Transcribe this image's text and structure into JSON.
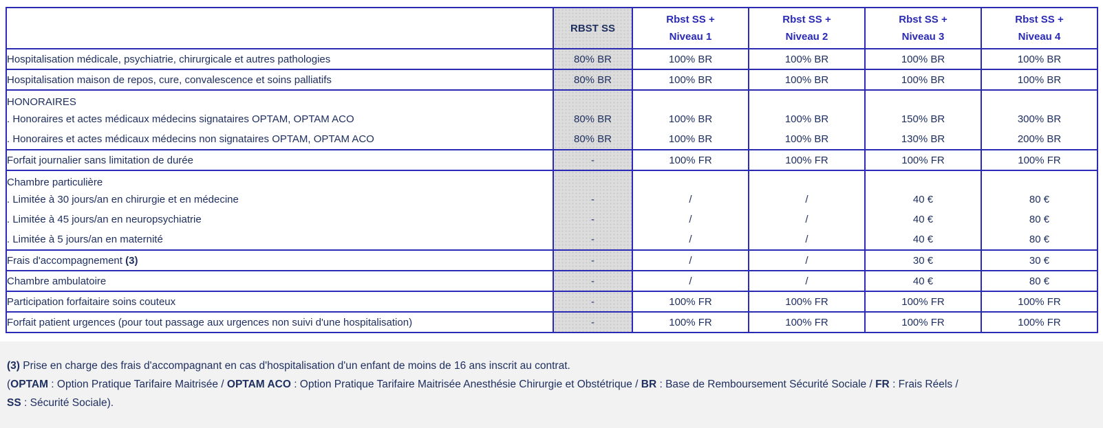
{
  "colors": {
    "border_blue": "#2a2ab5",
    "header_blue": "#2a2ab5",
    "text_navy": "#1f3060",
    "gray_column": "#dcdcdc",
    "footer_bg": "#f2f2f2"
  },
  "table": {
    "header": {
      "corner": "",
      "columns": [
        {
          "id": "rbst-ss",
          "gray": true,
          "lines": [
            "RBST SS"
          ]
        },
        {
          "id": "niveau-1",
          "gray": false,
          "lines": [
            "Rbst SS +",
            "Niveau 1"
          ]
        },
        {
          "id": "niveau-2",
          "gray": false,
          "lines": [
            "Rbst SS +",
            "Niveau 2"
          ]
        },
        {
          "id": "niveau-3",
          "gray": false,
          "lines": [
            "Rbst SS +",
            "Niveau 3"
          ]
        },
        {
          "id": "niveau-4",
          "gray": false,
          "lines": [
            "Rbst SS +",
            "Niveau 4"
          ]
        }
      ]
    },
    "rows": [
      {
        "label_lines": [
          "Hospitalisation médicale, psychiatrie, chirurgicale et autres pathologies"
        ],
        "values": [
          [
            "80% BR"
          ],
          [
            "100% BR"
          ],
          [
            "100% BR"
          ],
          [
            "100% BR"
          ],
          [
            "100% BR"
          ]
        ]
      },
      {
        "label_lines": [
          "Hospitalisation maison de repos, cure, convalescence et soins palliatifs"
        ],
        "values": [
          [
            "80% BR"
          ],
          [
            "100% BR"
          ],
          [
            "100% BR"
          ],
          [
            "100% BR"
          ],
          [
            "100% BR"
          ]
        ]
      },
      {
        "label_lines": [
          "HONORAIRES",
          ". Honoraires et actes médicaux médecins signataires OPTAM, OPTAM ACO",
          ". Honoraires et actes médicaux médecins non signataires OPTAM, OPTAM ACO"
        ],
        "values": [
          [
            "",
            "80% BR",
            "80% BR"
          ],
          [
            "",
            "100% BR",
            "100% BR"
          ],
          [
            "",
            "100% BR",
            "100% BR"
          ],
          [
            "",
            "150% BR",
            "130% BR"
          ],
          [
            "",
            "300% BR",
            "200% BR"
          ]
        ]
      },
      {
        "label_lines": [
          "Forfait journalier sans limitation de durée"
        ],
        "values": [
          [
            "-"
          ],
          [
            "100% FR"
          ],
          [
            "100% FR"
          ],
          [
            "100% FR"
          ],
          [
            "100% FR"
          ]
        ]
      },
      {
        "label_lines": [
          "Chambre particulière",
          ". Limitée à 30 jours/an en chirurgie et en médecine",
          ". Limitée à 45 jours/an en neuropsychiatrie",
          ". Limitée à 5 jours/an en maternité"
        ],
        "values": [
          [
            "",
            "-",
            "-",
            "-"
          ],
          [
            "",
            "/",
            "/",
            "/"
          ],
          [
            "",
            "/",
            "/",
            "/"
          ],
          [
            "",
            "40 €",
            "40 €",
            "40 €"
          ],
          [
            "",
            "80 €",
            "80 €",
            "80 €"
          ]
        ]
      },
      {
        "label_lines": [
          "Frais d'accompagnement **(3)**"
        ],
        "values": [
          [
            "-"
          ],
          [
            "/"
          ],
          [
            "/"
          ],
          [
            "30 €"
          ],
          [
            "30 €"
          ]
        ]
      },
      {
        "label_lines": [
          "Chambre ambulatoire"
        ],
        "values": [
          [
            "-"
          ],
          [
            "/"
          ],
          [
            "/"
          ],
          [
            "40 €"
          ],
          [
            "80 €"
          ]
        ]
      },
      {
        "label_lines": [
          "Participation forfaitaire soins couteux"
        ],
        "values": [
          [
            "-"
          ],
          [
            "100% FR"
          ],
          [
            "100% FR"
          ],
          [
            "100% FR"
          ],
          [
            "100% FR"
          ]
        ]
      },
      {
        "label_lines": [
          "Forfait patient urgences (pour tout passage aux urgences non suivi d'une hospitalisation)"
        ],
        "values": [
          [
            "-"
          ],
          [
            "100% FR"
          ],
          [
            "100% FR"
          ],
          [
            "100% FR"
          ],
          [
            "100% FR"
          ]
        ]
      }
    ]
  },
  "footnotes": {
    "line1": "**(3)** Prise en charge des frais d'accompagnant en cas d'hospitalisation d'un enfant de moins de 16 ans inscrit au contrat.",
    "line2": "(**OPTAM** : Option Pratique Tarifaire Maitrisée / **OPTAM ACO** : Option Pratique Tarifaire Maitrisée Anesthésie Chirurgie et Obstétrique / **BR** : Base de Remboursement Sécurité Sociale / **FR** : Frais Réels /",
    "line3": "**SS** : Sécurité Sociale)."
  }
}
